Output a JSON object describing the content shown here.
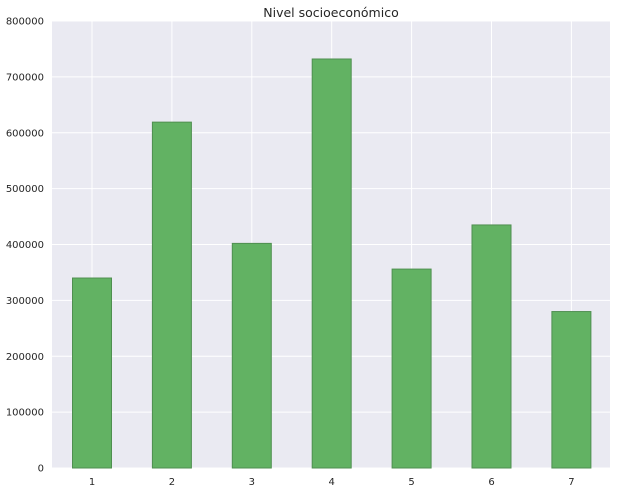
{
  "chart_data": {
    "type": "bar",
    "title": "Nivel socioeconómico",
    "xlabel": "",
    "ylabel": "",
    "categories": [
      "1",
      "2",
      "3",
      "4",
      "5",
      "6",
      "7"
    ],
    "values": [
      340000,
      619000,
      402000,
      732000,
      356000,
      435000,
      280000
    ],
    "ylim": [
      0,
      800000
    ],
    "yticks": [
      "0",
      "100000",
      "200000",
      "300000",
      "400000",
      "500000",
      "600000",
      "700000",
      "800000"
    ],
    "grid": true,
    "legend": "none",
    "colors": {
      "bar_fill": "#62b263",
      "bar_edge": "#4f8f50",
      "background": "#eaeaf2",
      "grid": "#ffffff"
    }
  }
}
